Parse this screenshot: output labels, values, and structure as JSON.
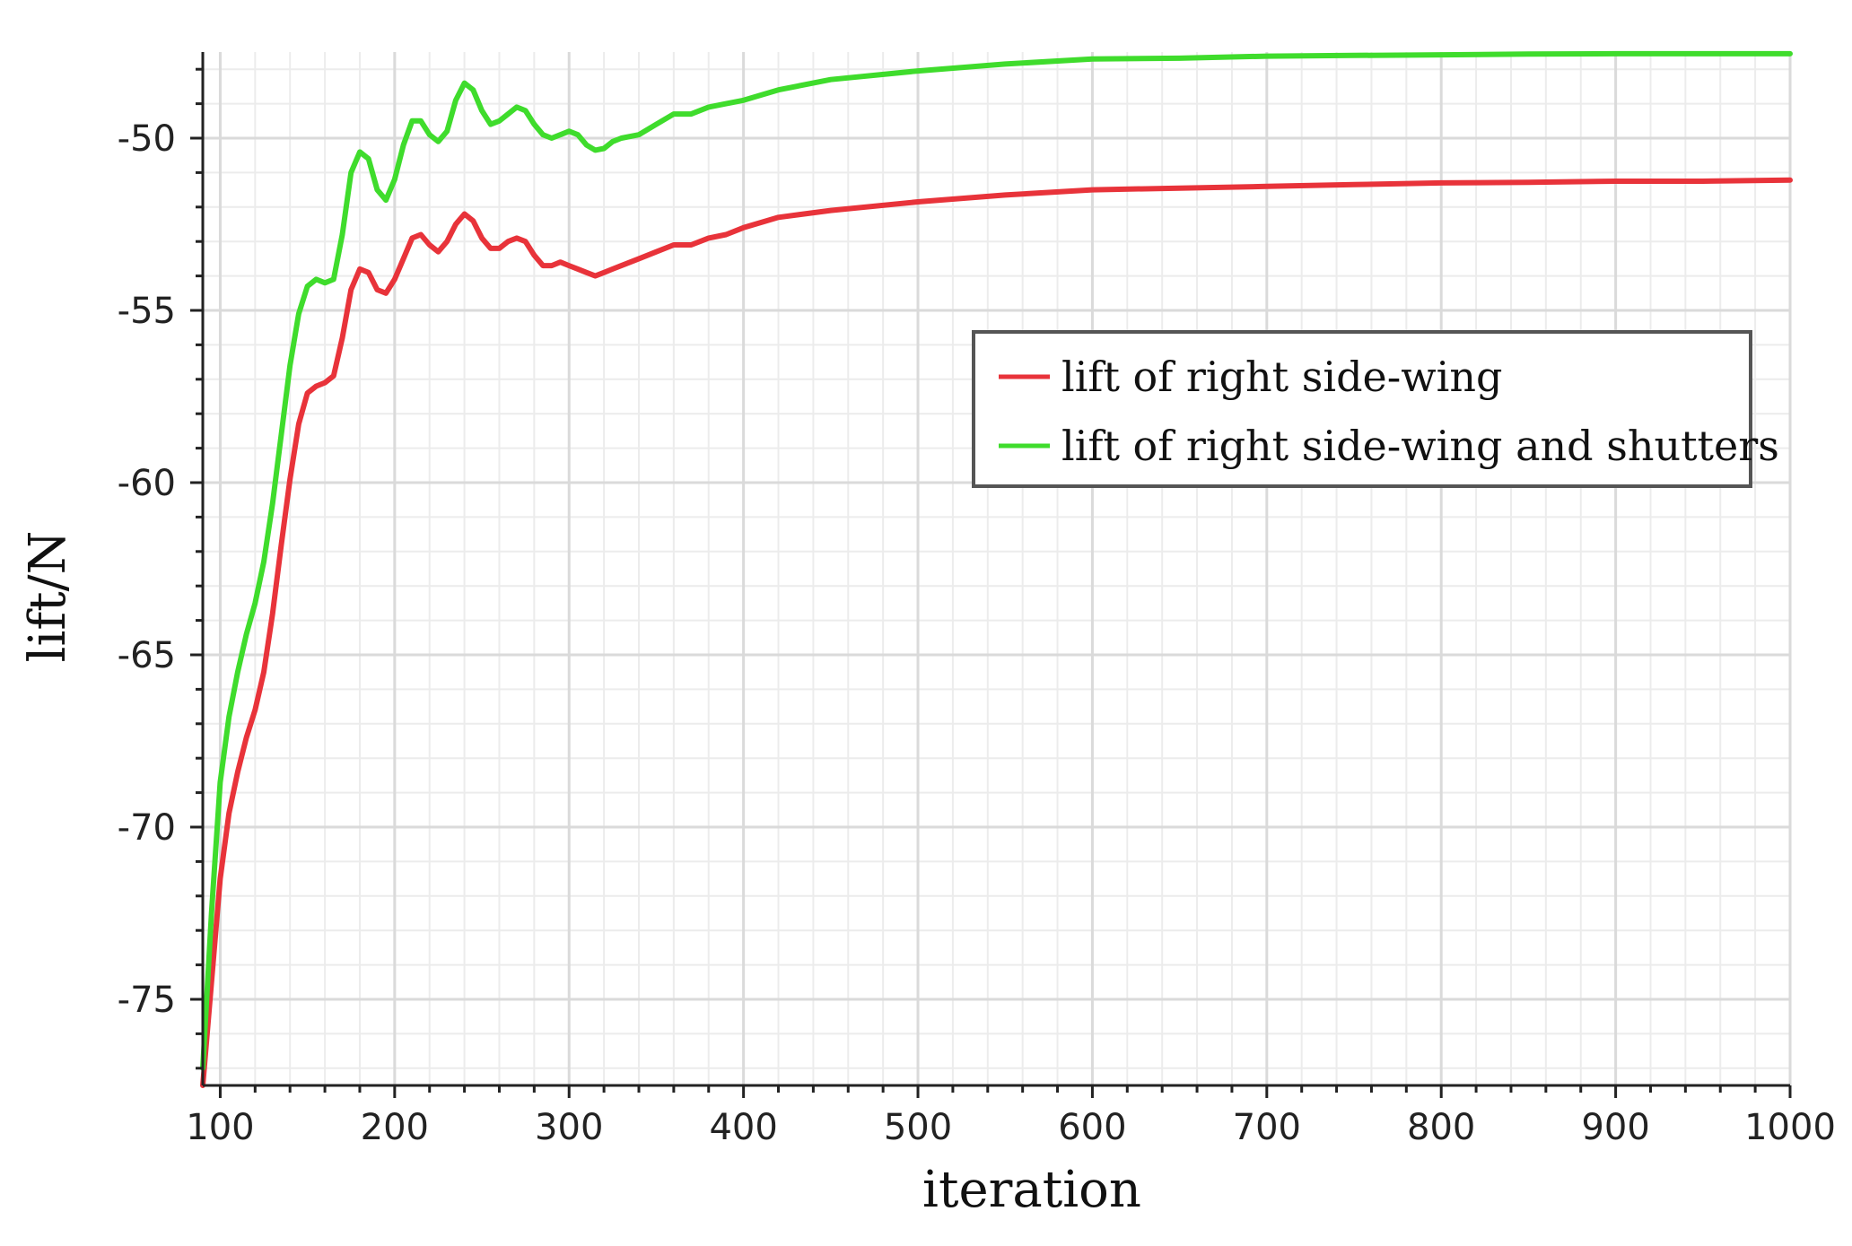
{
  "chart_data": {
    "type": "line",
    "xlabel": "iteration",
    "ylabel": "lift/N",
    "xlim": [
      90,
      1000
    ],
    "ylim": [
      -77.5,
      -47.5
    ],
    "x_ticks": [
      100,
      200,
      300,
      400,
      500,
      600,
      700,
      800,
      900,
      1000
    ],
    "y_ticks": [
      -50,
      -55,
      -60,
      -65,
      -70,
      -75
    ],
    "grid": true,
    "legend_position": "center-right",
    "series": [
      {
        "name": "lift of right side-wing",
        "color": "#e8333a",
        "points": [
          [
            90,
            -77.5
          ],
          [
            95,
            -74.5
          ],
          [
            100,
            -71.5
          ],
          [
            105,
            -69.6
          ],
          [
            110,
            -68.4
          ],
          [
            115,
            -67.4
          ],
          [
            120,
            -66.6
          ],
          [
            125,
            -65.5
          ],
          [
            130,
            -63.8
          ],
          [
            135,
            -61.8
          ],
          [
            140,
            -59.9
          ],
          [
            145,
            -58.3
          ],
          [
            150,
            -57.4
          ],
          [
            155,
            -57.2
          ],
          [
            160,
            -57.1
          ],
          [
            165,
            -56.9
          ],
          [
            170,
            -55.8
          ],
          [
            175,
            -54.4
          ],
          [
            180,
            -53.8
          ],
          [
            185,
            -53.9
          ],
          [
            190,
            -54.4
          ],
          [
            195,
            -54.5
          ],
          [
            200,
            -54.1
          ],
          [
            205,
            -53.5
          ],
          [
            210,
            -52.9
          ],
          [
            215,
            -52.8
          ],
          [
            220,
            -53.1
          ],
          [
            225,
            -53.3
          ],
          [
            230,
            -53.0
          ],
          [
            235,
            -52.5
          ],
          [
            240,
            -52.2
          ],
          [
            245,
            -52.4
          ],
          [
            250,
            -52.9
          ],
          [
            255,
            -53.2
          ],
          [
            260,
            -53.2
          ],
          [
            265,
            -53.0
          ],
          [
            270,
            -52.9
          ],
          [
            275,
            -53.0
          ],
          [
            280,
            -53.4
          ],
          [
            285,
            -53.7
          ],
          [
            290,
            -53.7
          ],
          [
            295,
            -53.6
          ],
          [
            300,
            -53.7
          ],
          [
            305,
            -53.8
          ],
          [
            310,
            -53.9
          ],
          [
            315,
            -54.0
          ],
          [
            320,
            -53.9
          ],
          [
            325,
            -53.8
          ],
          [
            330,
            -53.7
          ],
          [
            340,
            -53.5
          ],
          [
            350,
            -53.3
          ],
          [
            360,
            -53.1
          ],
          [
            370,
            -53.1
          ],
          [
            380,
            -52.9
          ],
          [
            390,
            -52.8
          ],
          [
            400,
            -52.6
          ],
          [
            420,
            -52.3
          ],
          [
            450,
            -52.1
          ],
          [
            500,
            -51.85
          ],
          [
            550,
            -51.65
          ],
          [
            600,
            -51.5
          ],
          [
            650,
            -51.45
          ],
          [
            700,
            -51.4
          ],
          [
            750,
            -51.35
          ],
          [
            800,
            -51.3
          ],
          [
            850,
            -51.28
          ],
          [
            900,
            -51.25
          ],
          [
            950,
            -51.25
          ],
          [
            1000,
            -51.22
          ]
        ]
      },
      {
        "name": "lift of right side-wing and shutters",
        "color": "#3fdc2c",
        "points": [
          [
            90,
            -77.0
          ],
          [
            95,
            -72.5
          ],
          [
            100,
            -68.7
          ],
          [
            105,
            -66.8
          ],
          [
            110,
            -65.5
          ],
          [
            115,
            -64.4
          ],
          [
            120,
            -63.5
          ],
          [
            125,
            -62.3
          ],
          [
            130,
            -60.6
          ],
          [
            135,
            -58.6
          ],
          [
            140,
            -56.6
          ],
          [
            145,
            -55.1
          ],
          [
            150,
            -54.3
          ],
          [
            155,
            -54.1
          ],
          [
            160,
            -54.2
          ],
          [
            165,
            -54.1
          ],
          [
            170,
            -52.8
          ],
          [
            175,
            -51.0
          ],
          [
            180,
            -50.4
          ],
          [
            185,
            -50.6
          ],
          [
            190,
            -51.5
          ],
          [
            195,
            -51.8
          ],
          [
            200,
            -51.2
          ],
          [
            205,
            -50.2
          ],
          [
            210,
            -49.5
          ],
          [
            215,
            -49.5
          ],
          [
            220,
            -49.9
          ],
          [
            225,
            -50.1
          ],
          [
            230,
            -49.8
          ],
          [
            235,
            -48.9
          ],
          [
            240,
            -48.4
          ],
          [
            245,
            -48.6
          ],
          [
            250,
            -49.2
          ],
          [
            255,
            -49.6
          ],
          [
            260,
            -49.5
          ],
          [
            265,
            -49.3
          ],
          [
            270,
            -49.1
          ],
          [
            275,
            -49.2
          ],
          [
            280,
            -49.6
          ],
          [
            285,
            -49.9
          ],
          [
            290,
            -50.0
          ],
          [
            295,
            -49.9
          ],
          [
            300,
            -49.8
          ],
          [
            305,
            -49.9
          ],
          [
            310,
            -50.2
          ],
          [
            315,
            -50.35
          ],
          [
            320,
            -50.3
          ],
          [
            325,
            -50.1
          ],
          [
            330,
            -50.0
          ],
          [
            340,
            -49.9
          ],
          [
            350,
            -49.6
          ],
          [
            360,
            -49.3
          ],
          [
            370,
            -49.3
          ],
          [
            380,
            -49.1
          ],
          [
            390,
            -49.0
          ],
          [
            400,
            -48.9
          ],
          [
            420,
            -48.6
          ],
          [
            450,
            -48.3
          ],
          [
            500,
            -48.05
          ],
          [
            550,
            -47.85
          ],
          [
            600,
            -47.7
          ],
          [
            650,
            -47.68
          ],
          [
            700,
            -47.62
          ],
          [
            750,
            -47.6
          ],
          [
            800,
            -47.58
          ],
          [
            850,
            -47.56
          ],
          [
            900,
            -47.55
          ],
          [
            950,
            -47.55
          ],
          [
            1000,
            -47.55
          ]
        ]
      }
    ]
  }
}
